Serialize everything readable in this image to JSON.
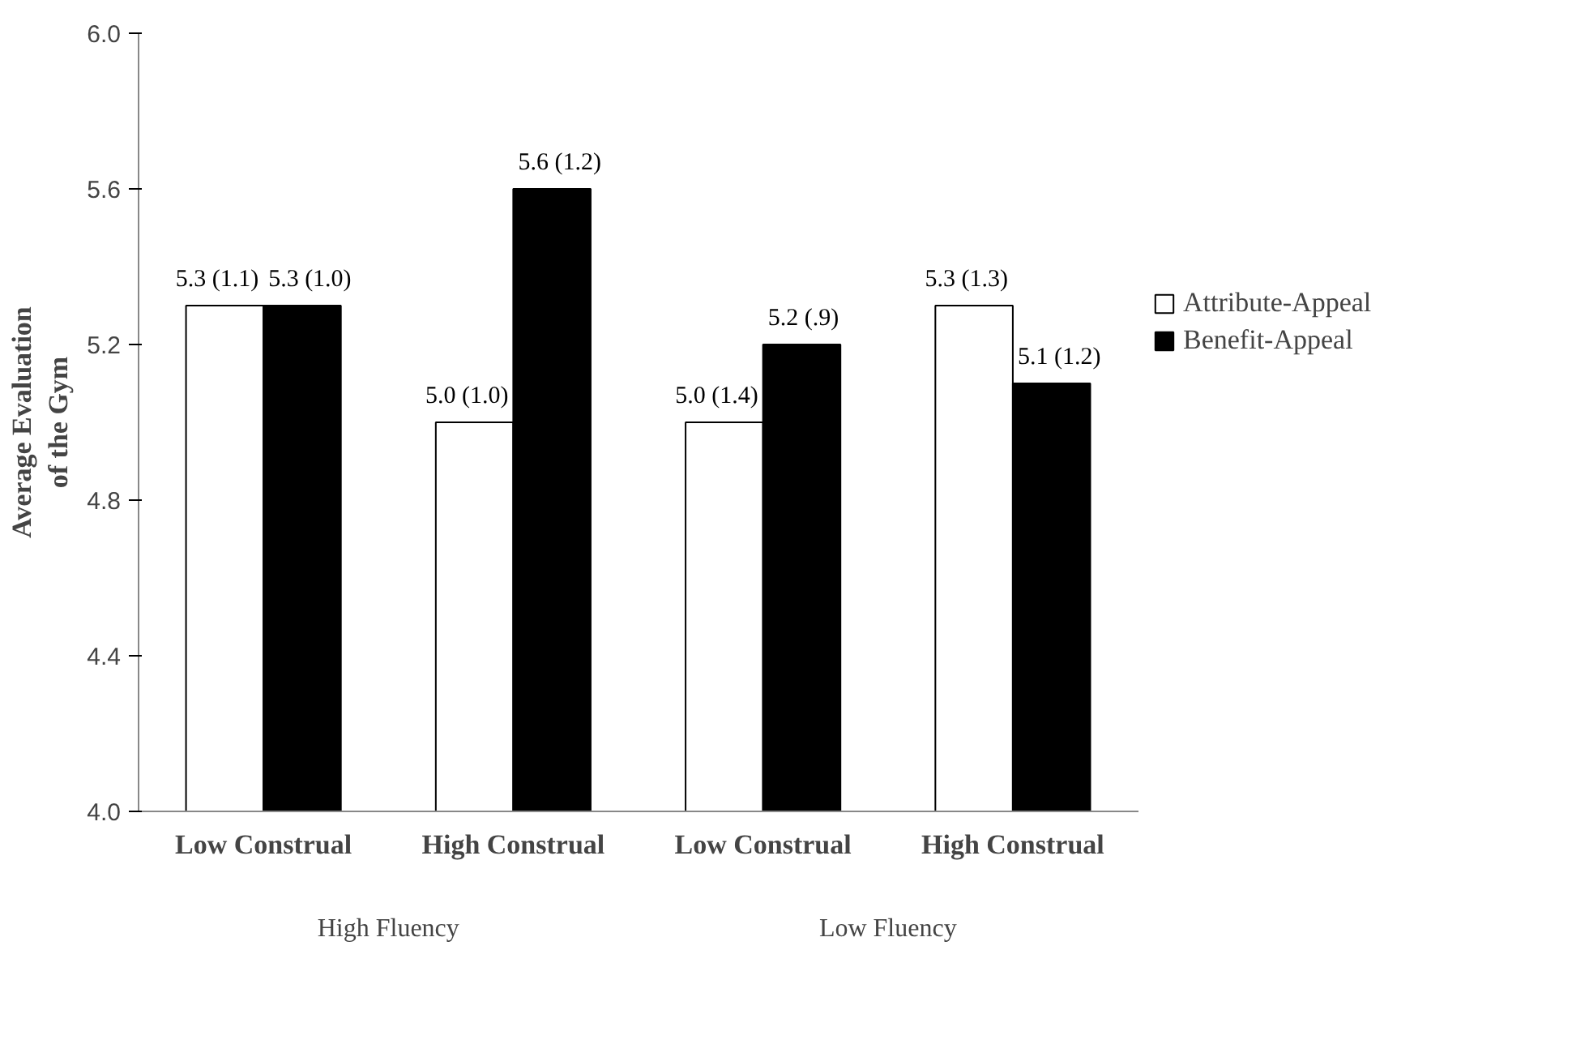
{
  "chart_data": {
    "type": "bar",
    "ylabel": "Average Evaluation of the Gym",
    "categories": [
      "Low Construal",
      "High Construal",
      "Low Construal",
      "High Construal"
    ],
    "series": [
      {
        "name": "Attribute-Appeal",
        "color": "#ffffff",
        "values": [
          5.3,
          5.0,
          5.0,
          5.3
        ],
        "value_labels": [
          "5.3 (1.1)",
          "5.0 (1.0)",
          "5.0 (1.4)",
          "5.3 (1.3)"
        ]
      },
      {
        "name": "Benefit-Appeal",
        "color": "#000000",
        "values": [
          5.3,
          5.6,
          5.2,
          5.1
        ],
        "value_labels": [
          "5.3 (1.0)",
          "5.6 (1.2)",
          "5.2 (.9)",
          "5.1 (1.2)"
        ]
      }
    ],
    "annotations": [
      "High Fluency",
      "Low Fluency"
    ],
    "ylim": [
      4.0,
      6.0
    ],
    "yticks": [
      {
        "value": 4.0,
        "label": "4.0"
      },
      {
        "value": 4.4,
        "label": "4.4"
      },
      {
        "value": 4.8,
        "label": "4.8"
      },
      {
        "value": 5.2,
        "label": "5.2"
      },
      {
        "value": 5.6,
        "label": "5.6"
      },
      {
        "value": 6.0,
        "label": "6.0"
      }
    ],
    "grid": false,
    "legend": "right"
  }
}
